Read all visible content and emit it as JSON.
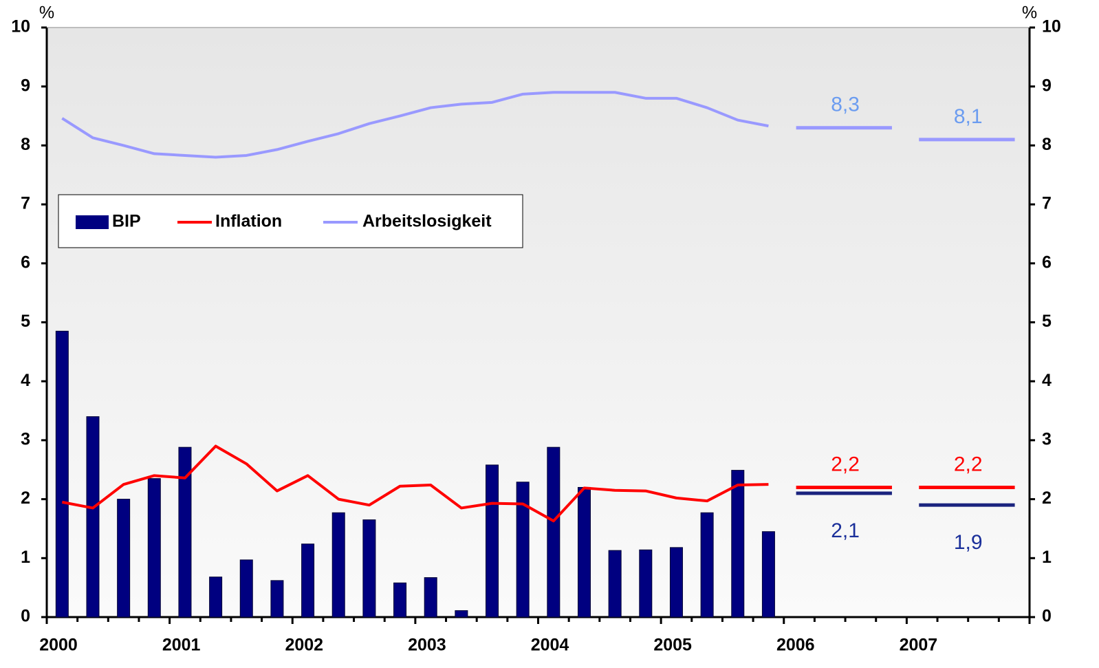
{
  "chart_data": {
    "type": "bar_line",
    "yunit": "%",
    "categories": [
      "2000",
      null,
      null,
      null,
      "2001",
      null,
      null,
      null,
      "2002",
      null,
      null,
      null,
      "2003",
      null,
      null,
      null,
      "2004",
      null,
      null,
      null,
      "2005",
      null,
      null,
      null,
      "2006",
      null,
      null,
      null,
      "2007",
      null,
      null,
      null
    ],
    "series": [
      {
        "name": "BIP",
        "type": "bar",
        "color": "#000080",
        "label_color": "#1a2f9a",
        "values": [
          4.85,
          3.4,
          2.0,
          2.35,
          2.88,
          0.68,
          0.97,
          0.62,
          1.24,
          1.77,
          1.65,
          0.58,
          0.67,
          0.11,
          2.58,
          2.29,
          2.88,
          2.2,
          1.13,
          1.14,
          1.18,
          1.77,
          2.49,
          1.45,
          null,
          null,
          null,
          null,
          null,
          null,
          null,
          null
        ],
        "forecast": [
          2.1,
          1.9
        ],
        "forecast_labels": [
          "2,1",
          "1,9"
        ]
      },
      {
        "name": "Inflation",
        "type": "line",
        "color": "#ff0000",
        "label_color": "#ff0000",
        "values": [
          1.95,
          1.85,
          2.25,
          2.4,
          2.36,
          2.9,
          2.6,
          2.14,
          2.4,
          2.0,
          1.9,
          2.22,
          2.24,
          1.85,
          1.93,
          1.92,
          1.63,
          2.19,
          2.15,
          2.14,
          2.02,
          1.97,
          2.24,
          2.25,
          null,
          null,
          null,
          null,
          null,
          null,
          null,
          null
        ],
        "forecast": [
          2.2,
          2.2
        ],
        "forecast_labels": [
          "2,2",
          "2,2"
        ]
      },
      {
        "name": "Arbeitslosigkeit",
        "type": "line",
        "color": "#9999ff",
        "label_color": "#6b9cf0",
        "values": [
          8.46,
          8.13,
          8.0,
          7.86,
          7.83,
          7.8,
          7.83,
          7.93,
          8.07,
          8.2,
          8.37,
          8.5,
          8.64,
          8.7,
          8.73,
          8.87,
          8.9,
          8.9,
          8.9,
          8.8,
          8.8,
          8.64,
          8.43,
          8.33,
          null,
          null,
          null,
          null,
          null,
          null,
          null,
          null
        ],
        "forecast": [
          8.3,
          8.1
        ],
        "forecast_labels": [
          "8,3",
          "8,1"
        ]
      }
    ],
    "ylim": [
      0,
      10
    ],
    "yticks": [
      0,
      1,
      2,
      3,
      4,
      5,
      6,
      7,
      8,
      9,
      10
    ],
    "y2lim": [
      0,
      10
    ],
    "y2ticks": [
      0,
      1,
      2,
      3,
      4,
      5,
      6,
      7,
      8,
      9,
      10
    ],
    "legend": "upper left"
  }
}
